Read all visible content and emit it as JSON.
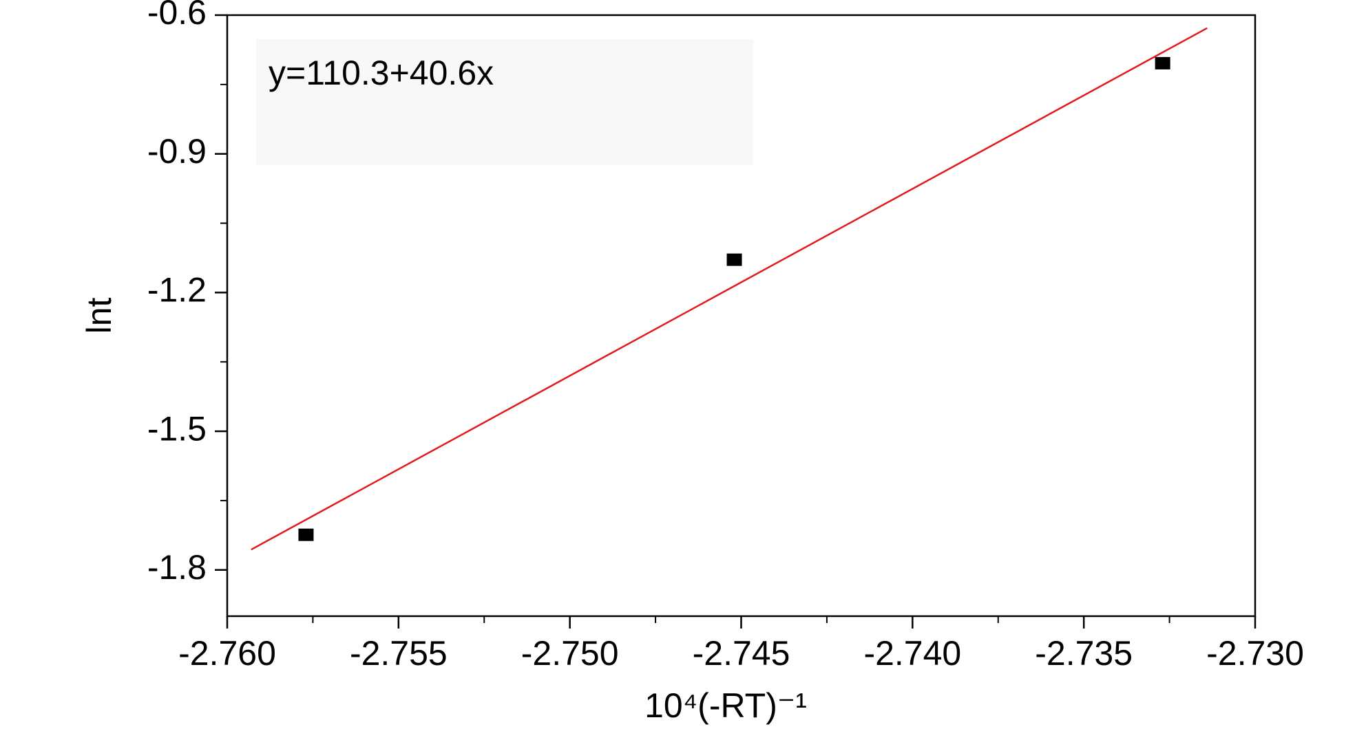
{
  "chart_data": {
    "type": "scatter",
    "annotation": "y=110.3+40.6x",
    "x_label": "10⁴(-RT)⁻¹",
    "y_label": "lnt",
    "xlim": [
      -2.76,
      -2.73
    ],
    "xticks": [
      {
        "value": -2.76,
        "label": "-2.760"
      },
      {
        "value": -2.755,
        "label": "-2.755"
      },
      {
        "value": -2.75,
        "label": "-2.750"
      },
      {
        "value": -2.745,
        "label": "-2.745"
      },
      {
        "value": -2.74,
        "label": "-2.740"
      },
      {
        "value": -2.735,
        "label": "-2.735"
      },
      {
        "value": -2.73,
        "label": "-2.730"
      }
    ],
    "ylim": [
      -1.9,
      -0.6
    ],
    "yticks": [
      -0.6,
      -0.9,
      -1.2,
      -1.5,
      -1.8
    ],
    "series": [
      {
        "color": "#000000",
        "marker": "square",
        "x": [
          -2.7577,
          -2.7452,
          -2.7327
        ],
        "values": [
          -1.724,
          -1.129,
          -0.704
        ]
      },
      {
        "color": "#e31a1c",
        "style": "line",
        "x": [
          -2.7593,
          -2.7314
        ],
        "values": [
          -1.756,
          -0.628
        ]
      }
    ]
  }
}
